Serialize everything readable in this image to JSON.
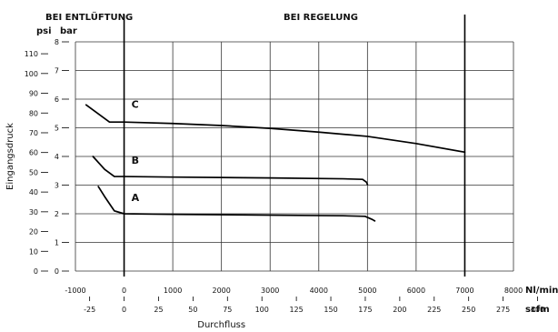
{
  "chart_data": {
    "type": "line",
    "header": {
      "left": "BEI ENTLÜFTUNG",
      "right": "BEI REGELUNG"
    },
    "ylabel": "Eingangsdruck",
    "xlabel": "Durchfluss",
    "units": {
      "psi": "psi",
      "bar": "bar",
      "nlmin": "Nl/min",
      "scfm": "scfm"
    },
    "x_axis_nlmin": {
      "range": [
        -1000,
        8000
      ],
      "ticks": [
        -1000,
        0,
        1000,
        2000,
        3000,
        4000,
        5000,
        6000,
        7000,
        8000
      ]
    },
    "x_axis_scfm": {
      "ticks": [
        -25,
        0,
        25,
        50,
        75,
        100,
        125,
        150,
        175,
        200,
        225,
        250,
        275,
        300
      ]
    },
    "y_axis_bar": {
      "range": [
        0,
        8
      ],
      "ticks": [
        0,
        1,
        2,
        3,
        4,
        5,
        6,
        7,
        8
      ]
    },
    "y_axis_psi": {
      "ticks": [
        0,
        10,
        20,
        30,
        40,
        50,
        60,
        70,
        80,
        90,
        100,
        110
      ]
    },
    "series": [
      {
        "name": "A",
        "points": [
          [
            -530,
            2.95
          ],
          [
            -400,
            2.6
          ],
          [
            -200,
            2.1
          ],
          [
            0,
            2.0
          ],
          [
            1000,
            1.98
          ],
          [
            3000,
            1.95
          ],
          [
            4500,
            1.93
          ],
          [
            4950,
            1.91
          ],
          [
            5100,
            1.8
          ],
          [
            5150,
            1.75
          ]
        ]
      },
      {
        "name": "B",
        "points": [
          [
            -640,
            4.0
          ],
          [
            -400,
            3.55
          ],
          [
            -200,
            3.3
          ],
          [
            0,
            3.3
          ],
          [
            1000,
            3.28
          ],
          [
            3000,
            3.25
          ],
          [
            4500,
            3.22
          ],
          [
            4900,
            3.2
          ],
          [
            4980,
            3.1
          ],
          [
            5000,
            3.02
          ]
        ]
      },
      {
        "name": "C",
        "points": [
          [
            -780,
            5.8
          ],
          [
            -500,
            5.45
          ],
          [
            -300,
            5.2
          ],
          [
            0,
            5.2
          ],
          [
            1000,
            5.15
          ],
          [
            2000,
            5.08
          ],
          [
            3000,
            4.98
          ],
          [
            4000,
            4.85
          ],
          [
            5000,
            4.7
          ],
          [
            6000,
            4.45
          ],
          [
            7000,
            4.15
          ]
        ]
      }
    ],
    "reference_lines_x": [
      0,
      7000
    ],
    "grid": true
  }
}
